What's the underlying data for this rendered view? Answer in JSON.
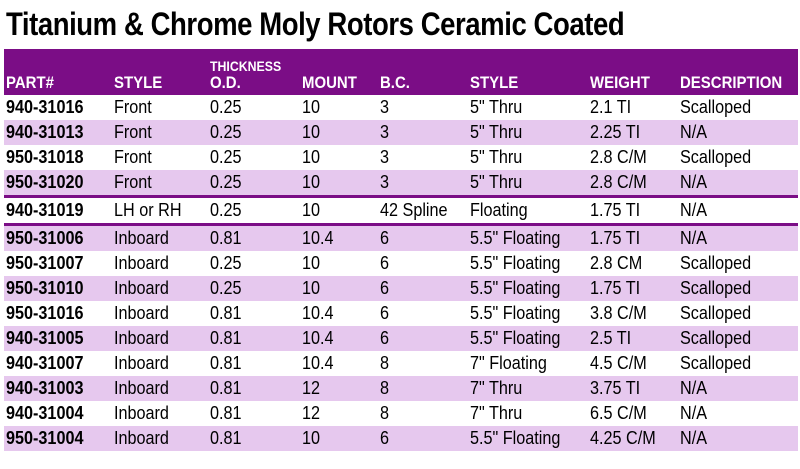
{
  "title": "Titanium & Chrome Moly Rotors Ceramic Coated",
  "headers": {
    "part": "PART#",
    "style": "STYLE",
    "thickness_top": "THICKNESS",
    "od": "O.D.",
    "mount": "MOUNT",
    "bc": "B.C.",
    "style2": "STYLE",
    "weight": "WEIGHT",
    "description": "DESCRIPTION"
  },
  "colors": {
    "header_bg": "#7b0d86",
    "stripe": "#e6c8ee",
    "header_text": "#ffffff"
  },
  "rows": [
    {
      "part": "940-31016",
      "style": "Front",
      "od": "0.25",
      "mount": "10",
      "bc": "3",
      "style2": "5\" Thru",
      "weight": "2.1 TI",
      "description": "Scalloped"
    },
    {
      "part": "940-31013",
      "style": "Front",
      "od": "0.25",
      "mount": "10",
      "bc": "3",
      "style2": "5\" Thru",
      "weight": "2.25 TI",
      "description": "N/A"
    },
    {
      "part": "950-31018",
      "style": "Front",
      "od": "0.25",
      "mount": "10",
      "bc": "3",
      "style2": "5\" Thru",
      "weight": "2.8 C/M",
      "description": "Scalloped"
    },
    {
      "part": "950-31020",
      "style": "Front",
      "od": "0.25",
      "mount": "10",
      "bc": "3",
      "style2": "5\" Thru",
      "weight": "2.8 C/M",
      "description": "N/A"
    },
    {
      "part": "940-31019",
      "style": "LH or RH",
      "od": "0.25",
      "mount": "10",
      "bc": "42 Spline",
      "style2": "Floating",
      "weight": "1.75 TI",
      "description": "N/A"
    },
    {
      "part": "950-31006",
      "style": "Inboard",
      "od": "0.81",
      "mount": "10.4",
      "bc": "6",
      "style2": "5.5\" Floating",
      "weight": "1.75 TI",
      "description": "N/A"
    },
    {
      "part": "950-31007",
      "style": "Inboard",
      "od": "0.25",
      "mount": "10",
      "bc": "6",
      "style2": "5.5\" Floating",
      "weight": "2.8 CM",
      "description": "Scalloped"
    },
    {
      "part": "950-31010",
      "style": "Inboard",
      "od": "0.25",
      "mount": "10",
      "bc": "6",
      "style2": "5.5\" Floating",
      "weight": "1.75 TI",
      "description": "Scalloped"
    },
    {
      "part": "950-31016",
      "style": "Inboard",
      "od": "0.81",
      "mount": "10.4",
      "bc": "6",
      "style2": "5.5\" Floating",
      "weight": "3.8 C/M",
      "description": "Scalloped"
    },
    {
      "part": "940-31005",
      "style": "Inboard",
      "od": "0.81",
      "mount": "10.4",
      "bc": "6",
      "style2": "5.5\" Floating",
      "weight": "2.5 TI",
      "description": "Scalloped"
    },
    {
      "part": "940-31007",
      "style": "Inboard",
      "od": "0.81",
      "mount": "10.4",
      "bc": "8",
      "style2": "7\" Floating",
      "weight": "4.5 C/M",
      "description": "Scalloped"
    },
    {
      "part": "940-31003",
      "style": "Inboard",
      "od": "0.81",
      "mount": "12",
      "bc": "8",
      "style2": "7\" Thru",
      "weight": "3.75 TI",
      "description": "N/A"
    },
    {
      "part": "940-31004",
      "style": "Inboard",
      "od": "0.81",
      "mount": "12",
      "bc": "8",
      "style2": "7\" Thru",
      "weight": "6.5 C/M",
      "description": "N/A"
    },
    {
      "part": "950-31004",
      "style": "Inboard",
      "od": "0.81",
      "mount": "10",
      "bc": "6",
      "style2": "5.5\" Floating",
      "weight": "4.25 C/M",
      "description": "N/A"
    }
  ]
}
